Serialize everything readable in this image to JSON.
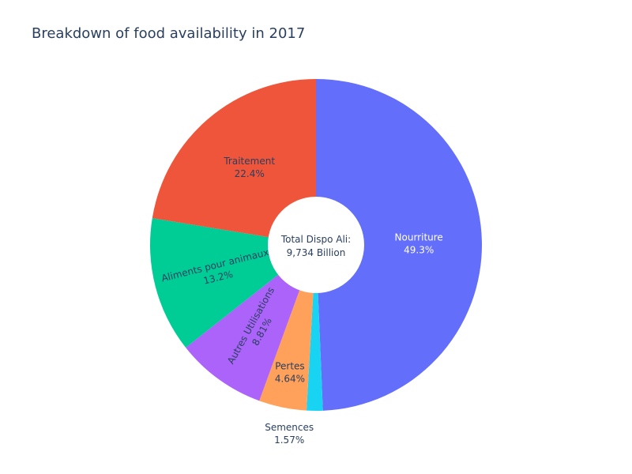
{
  "chart_data": {
    "type": "pie",
    "title": "Breakdown of food availability in 2017",
    "hole_text": [
      "Total Dispo Ali:",
      "9,734 Billion"
    ],
    "slices": [
      {
        "label": "Nourriture",
        "value": 49.3,
        "percent_label": "49.3%",
        "color": "#636efa",
        "text_color": "#ffffff"
      },
      {
        "label": "Semences",
        "value": 1.57,
        "percent_label": "1.57%",
        "color": "#19d3f3",
        "text_color": "#2a3f5f"
      },
      {
        "label": "Pertes",
        "value": 4.64,
        "percent_label": "4.64%",
        "color": "#ffa15a",
        "text_color": "#2a3f5f"
      },
      {
        "label": "Autres Utilisations",
        "value": 8.81,
        "percent_label": "8.81%",
        "color": "#ab63fa",
        "text_color": "#2a3f5f"
      },
      {
        "label": "Aliments pour animaux",
        "value": 13.2,
        "percent_label": "13.2%",
        "color": "#00cc96",
        "text_color": "#2a3f5f"
      },
      {
        "label": "Traitement",
        "value": 22.4,
        "percent_label": "22.4%",
        "color": "#ef553b",
        "text_color": "#2a3f5f"
      }
    ],
    "direction": "clockwise",
    "start": "top"
  }
}
